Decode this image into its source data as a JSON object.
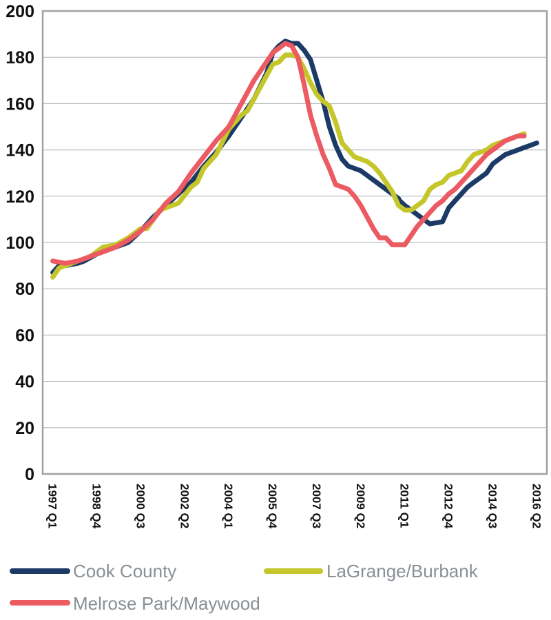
{
  "chart_data": {
    "type": "line",
    "title": "",
    "xlabel": "",
    "ylabel": "",
    "ylim": [
      0,
      200
    ],
    "yticks": [
      0,
      20,
      40,
      60,
      80,
      100,
      120,
      140,
      160,
      180,
      200
    ],
    "grid": true,
    "legend_position": "bottom",
    "x_tick_labels": [
      {
        "label": "1997 Q1",
        "x": 1997.0
      },
      {
        "label": "1998 Q4",
        "x": 1998.75
      },
      {
        "label": "2000 Q3",
        "x": 2000.5
      },
      {
        "label": "2002 Q2",
        "x": 2002.25
      },
      {
        "label": "2004 Q1",
        "x": 2004.0
      },
      {
        "label": "2005 Q4",
        "x": 2005.75
      },
      {
        "label": "2007 Q3",
        "x": 2007.5
      },
      {
        "label": "2009 Q2",
        "x": 2009.25
      },
      {
        "label": "2011 Q1",
        "x": 2011.0
      },
      {
        "label": "2012 Q4",
        "x": 2012.75
      },
      {
        "label": "2014 Q3",
        "x": 2014.5
      },
      {
        "label": "2016 Q2",
        "x": 2016.25
      }
    ],
    "series": [
      {
        "name": "Cook County",
        "color": "#1c3a66",
        "points": [
          [
            1997.0,
            87
          ],
          [
            1997.25,
            90
          ],
          [
            1997.5,
            90
          ],
          [
            1998.0,
            91
          ],
          [
            1998.25,
            92
          ],
          [
            1998.75,
            95
          ],
          [
            1999.25,
            97
          ],
          [
            1999.75,
            99
          ],
          [
            2000.0,
            100
          ],
          [
            2000.5,
            105
          ],
          [
            2001.0,
            111
          ],
          [
            2001.5,
            116
          ],
          [
            2002.0,
            121
          ],
          [
            2002.5,
            126
          ],
          [
            2003.0,
            133
          ],
          [
            2003.5,
            139
          ],
          [
            2004.0,
            146
          ],
          [
            2004.5,
            154
          ],
          [
            2005.0,
            162
          ],
          [
            2005.5,
            173
          ],
          [
            2005.75,
            182
          ],
          [
            2006.0,
            185
          ],
          [
            2006.25,
            187
          ],
          [
            2006.5,
            186
          ],
          [
            2006.75,
            186
          ],
          [
            2007.0,
            183
          ],
          [
            2007.25,
            179
          ],
          [
            2007.5,
            170
          ],
          [
            2007.75,
            161
          ],
          [
            2008.0,
            150
          ],
          [
            2008.25,
            142
          ],
          [
            2008.5,
            136
          ],
          [
            2008.75,
            133
          ],
          [
            2009.0,
            132
          ],
          [
            2009.25,
            131
          ],
          [
            2009.5,
            129
          ],
          [
            2010.0,
            125
          ],
          [
            2010.5,
            121
          ],
          [
            2010.75,
            119
          ],
          [
            2010.8,
            118
          ],
          [
            2011.0,
            116
          ],
          [
            2011.5,
            112
          ],
          [
            2011.75,
            110
          ],
          [
            2012.0,
            108
          ],
          [
            2012.5,
            109
          ],
          [
            2012.75,
            115
          ],
          [
            2013.0,
            118
          ],
          [
            2013.25,
            121
          ],
          [
            2013.5,
            124
          ],
          [
            2013.75,
            126
          ],
          [
            2014.0,
            128
          ],
          [
            2014.25,
            130
          ],
          [
            2014.5,
            134
          ],
          [
            2014.75,
            136
          ],
          [
            2015.0,
            138
          ],
          [
            2015.25,
            139
          ],
          [
            2015.5,
            140
          ],
          [
            2015.75,
            141
          ],
          [
            2016.0,
            142
          ],
          [
            2016.25,
            143
          ]
        ]
      },
      {
        "name": "LaGrange/Burbank",
        "color": "#c4c62a",
        "points": [
          [
            1997.0,
            85
          ],
          [
            1997.25,
            89
          ],
          [
            1997.5,
            90
          ],
          [
            1998.0,
            92
          ],
          [
            1998.5,
            94
          ],
          [
            1998.75,
            96
          ],
          [
            1999.0,
            98
          ],
          [
            1999.5,
            99
          ],
          [
            2000.0,
            102
          ],
          [
            2000.25,
            104
          ],
          [
            2000.5,
            106
          ],
          [
            2000.75,
            106
          ],
          [
            2001.0,
            110
          ],
          [
            2001.25,
            114
          ],
          [
            2001.5,
            115
          ],
          [
            2002.0,
            117
          ],
          [
            2002.5,
            124
          ],
          [
            2002.75,
            126
          ],
          [
            2003.0,
            132
          ],
          [
            2003.5,
            138
          ],
          [
            2004.0,
            149
          ],
          [
            2004.5,
            155
          ],
          [
            2004.75,
            157
          ],
          [
            2005.0,
            162
          ],
          [
            2005.5,
            172
          ],
          [
            2005.75,
            177
          ],
          [
            2006.0,
            178
          ],
          [
            2006.25,
            181
          ],
          [
            2006.5,
            181
          ],
          [
            2006.75,
            180
          ],
          [
            2007.0,
            175
          ],
          [
            2007.25,
            169
          ],
          [
            2007.5,
            164
          ],
          [
            2007.75,
            161
          ],
          [
            2008.0,
            159
          ],
          [
            2008.25,
            152
          ],
          [
            2008.5,
            143
          ],
          [
            2008.75,
            140
          ],
          [
            2009.0,
            137
          ],
          [
            2009.25,
            136
          ],
          [
            2009.5,
            135
          ],
          [
            2009.75,
            133
          ],
          [
            2010.0,
            130
          ],
          [
            2010.25,
            126
          ],
          [
            2010.5,
            122
          ],
          [
            2010.75,
            116
          ],
          [
            2011.0,
            114
          ],
          [
            2011.25,
            114
          ],
          [
            2011.5,
            116
          ],
          [
            2011.75,
            118
          ],
          [
            2012.0,
            123
          ],
          [
            2012.25,
            125
          ],
          [
            2012.5,
            126
          ],
          [
            2012.75,
            129
          ],
          [
            2013.0,
            130
          ],
          [
            2013.25,
            131
          ],
          [
            2013.5,
            135
          ],
          [
            2013.75,
            138
          ],
          [
            2014.0,
            139
          ],
          [
            2014.25,
            140
          ],
          [
            2014.5,
            142
          ],
          [
            2014.75,
            143
          ],
          [
            2015.0,
            144
          ],
          [
            2015.25,
            145
          ],
          [
            2015.5,
            146
          ],
          [
            2015.75,
            147
          ]
        ]
      },
      {
        "name": "Melrose Park/Maywood",
        "color": "#ec5a62",
        "points": [
          [
            1997.0,
            92
          ],
          [
            1997.5,
            91
          ],
          [
            1998.0,
            92
          ],
          [
            1998.5,
            94
          ],
          [
            1999.0,
            96
          ],
          [
            1999.5,
            98
          ],
          [
            2000.0,
            101
          ],
          [
            2000.5,
            105
          ],
          [
            2001.0,
            110
          ],
          [
            2001.5,
            117
          ],
          [
            2002.0,
            122
          ],
          [
            2002.5,
            130
          ],
          [
            2003.0,
            137
          ],
          [
            2003.5,
            144
          ],
          [
            2004.0,
            150
          ],
          [
            2004.5,
            160
          ],
          [
            2005.0,
            170
          ],
          [
            2005.5,
            178
          ],
          [
            2005.75,
            182
          ],
          [
            2006.0,
            184
          ],
          [
            2006.25,
            186
          ],
          [
            2006.5,
            185
          ],
          [
            2006.75,
            180
          ],
          [
            2007.0,
            168
          ],
          [
            2007.25,
            155
          ],
          [
            2007.5,
            146
          ],
          [
            2007.75,
            138
          ],
          [
            2008.0,
            132
          ],
          [
            2008.25,
            125
          ],
          [
            2008.5,
            124
          ],
          [
            2008.75,
            123
          ],
          [
            2009.0,
            120
          ],
          [
            2009.25,
            116
          ],
          [
            2009.5,
            111
          ],
          [
            2009.75,
            106
          ],
          [
            2010.0,
            102
          ],
          [
            2010.25,
            102
          ],
          [
            2010.5,
            99
          ],
          [
            2010.75,
            99
          ],
          [
            2011.0,
            99
          ],
          [
            2011.25,
            103
          ],
          [
            2011.5,
            107
          ],
          [
            2011.75,
            110
          ],
          [
            2012.0,
            113
          ],
          [
            2012.25,
            116
          ],
          [
            2012.5,
            118
          ],
          [
            2012.75,
            121
          ],
          [
            2013.0,
            123
          ],
          [
            2013.25,
            126
          ],
          [
            2013.5,
            129
          ],
          [
            2013.75,
            132
          ],
          [
            2014.0,
            135
          ],
          [
            2014.25,
            138
          ],
          [
            2014.5,
            140
          ],
          [
            2014.75,
            142
          ],
          [
            2015.0,
            144
          ],
          [
            2015.25,
            145
          ],
          [
            2015.5,
            146
          ],
          [
            2015.75,
            146
          ]
        ]
      }
    ],
    "legend": [
      {
        "label": "Cook County",
        "color": "#1c3a66"
      },
      {
        "label": "LaGrange/Burbank",
        "color": "#c4c62a"
      },
      {
        "label": "Melrose Park/Maywood",
        "color": "#ec5a62"
      }
    ]
  }
}
